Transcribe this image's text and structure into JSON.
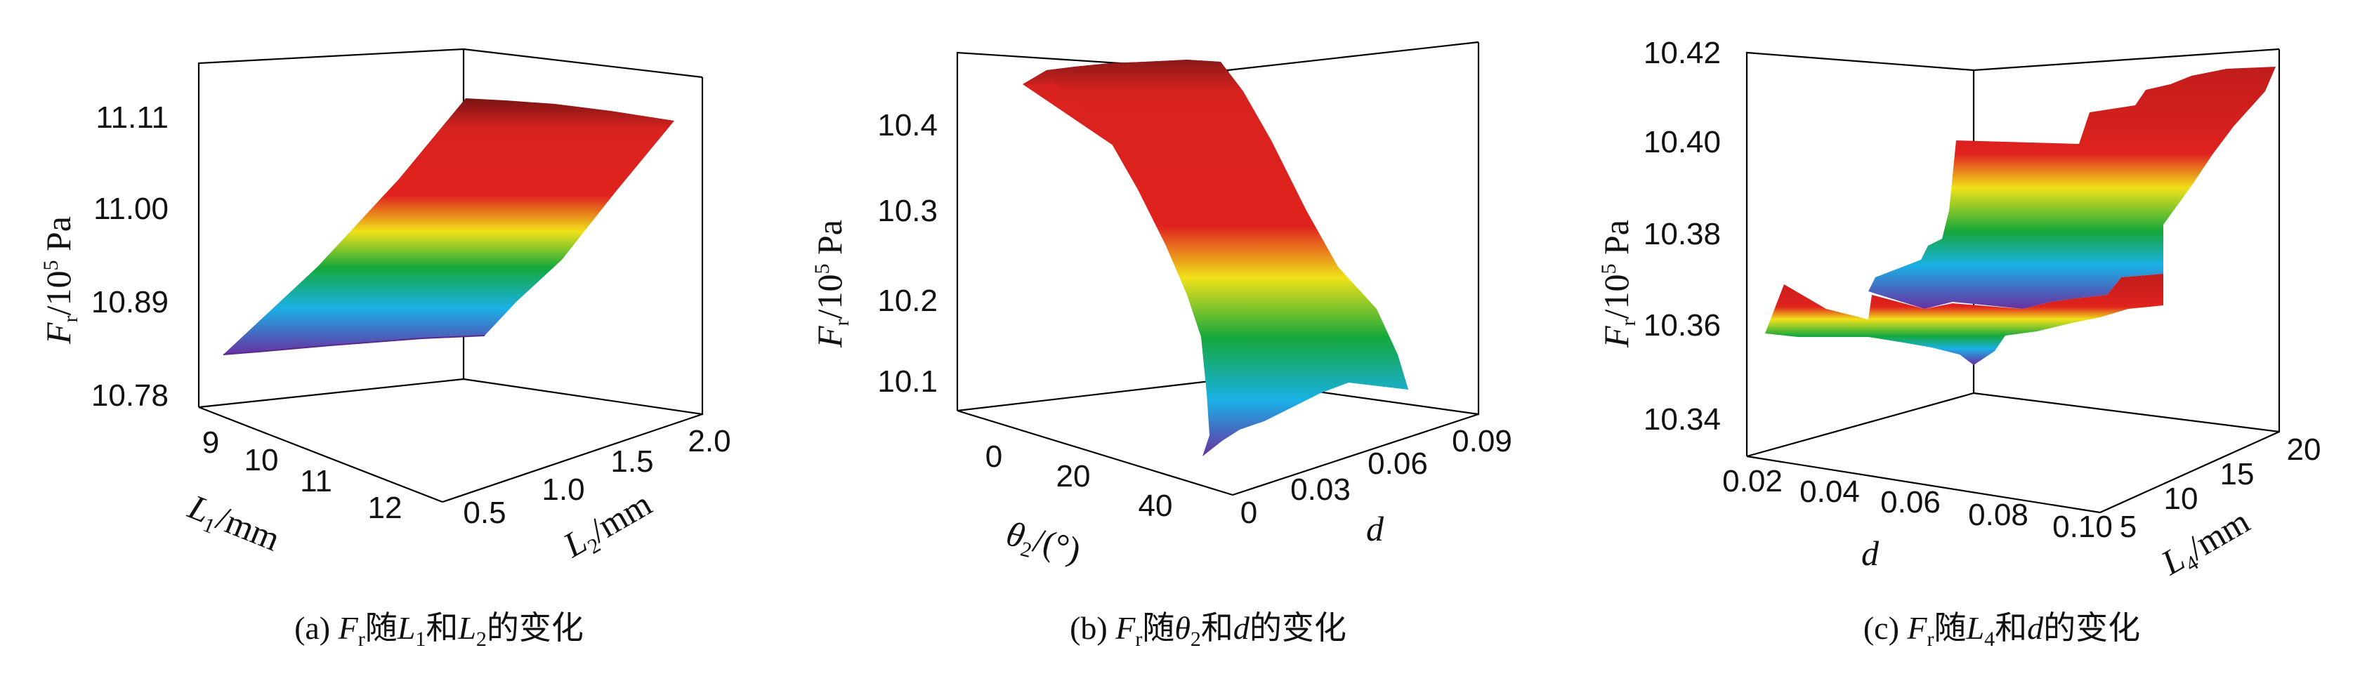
{
  "colors": {
    "high": "#7a1414",
    "peak": "#e0221e",
    "mid_hi": "#f0e21a",
    "mid": "#15a83b",
    "mid_lo": "#1ab0e6",
    "low": "#6a2fa0",
    "axis": "#000000"
  },
  "panels": [
    {
      "caption_prefix": "(a)",
      "caption_parts": [
        "F",
        "r",
        "随",
        "L",
        "1",
        "和",
        "L",
        "2",
        "的变化"
      ],
      "zlabel": "F",
      "zlabel_sub": "r",
      "zlabel_unit": "/10",
      "zlabel_sup": "5",
      "zlabel_tail": " Pa",
      "xlabel": "L",
      "xlabel_sub": "1",
      "xlabel_unit": "/mm",
      "ylabel": "L",
      "ylabel_sub": "2",
      "ylabel_unit": "/mm"
    },
    {
      "caption_prefix": "(b)",
      "caption_parts": [
        "F",
        "r",
        "随",
        "θ",
        "2",
        "和",
        "d",
        "的变化"
      ],
      "zlabel": "F",
      "zlabel_sub": "r",
      "zlabel_unit": "/10",
      "zlabel_sup": "5",
      "zlabel_tail": " Pa",
      "xlabel": "θ",
      "xlabel_sub": "2",
      "xlabel_unit": "/(°)",
      "ylabel": "d",
      "ylabel_sub": "",
      "ylabel_unit": ""
    },
    {
      "caption_prefix": "(c)",
      "caption_parts": [
        "F",
        "r",
        "随",
        "L",
        "4",
        "和",
        "d",
        "的变化"
      ],
      "zlabel": "F",
      "zlabel_sub": "r",
      "zlabel_unit": "/10",
      "zlabel_sup": "5",
      "zlabel_tail": " Pa",
      "xlabel": "d",
      "xlabel_sub": "",
      "xlabel_unit": "",
      "ylabel": "L",
      "ylabel_sub": "4",
      "ylabel_unit": "/mm"
    }
  ],
  "chart_data": [
    {
      "type": "surface",
      "title": "",
      "x": {
        "label": "L1/mm",
        "ticks": [
          "9",
          "10",
          "11",
          "12"
        ],
        "range": [
          8.5,
          12.5
        ]
      },
      "y": {
        "label": "L2/mm",
        "ticks": [
          "0.5",
          "1.0",
          "1.5",
          "2.0"
        ],
        "range": [
          0.3,
          2.1
        ]
      },
      "z": {
        "label": "Fr/10^5 Pa",
        "ticks": [
          "10.78",
          "10.89",
          "11.00",
          "11.11"
        ],
        "range": [
          10.75,
          11.17
        ]
      },
      "surface_points": [
        {
          "L1": 9,
          "L2": 0.5,
          "Fr": 10.84
        },
        {
          "L1": 12,
          "L2": 0.5,
          "Fr": 10.82
        },
        {
          "L1": 9,
          "L2": 2.0,
          "Fr": 11.12
        },
        {
          "L1": 12,
          "L2": 2.0,
          "Fr": 11.1
        }
      ]
    },
    {
      "type": "surface",
      "title": "",
      "x": {
        "label": "θ2/(°)",
        "ticks": [
          "0",
          "20",
          "40"
        ],
        "range": [
          -5,
          50
        ]
      },
      "y": {
        "label": "d",
        "ticks": [
          "0",
          "0.03",
          "0.06",
          "0.09"
        ],
        "range": [
          0,
          0.1
        ]
      },
      "z": {
        "label": "Fr/10^5 Pa",
        "ticks": [
          "10.1",
          "10.2",
          "10.3",
          "10.4"
        ],
        "range": [
          10.04,
          10.48
        ]
      },
      "surface_points": [
        {
          "theta2": 0,
          "d": 0.0,
          "Fr": 10.44
        },
        {
          "theta2": 20,
          "d": 0.0,
          "Fr": 10.46
        },
        {
          "theta2": 45,
          "d": 0.0,
          "Fr": 10.05
        },
        {
          "theta2": 45,
          "d": 0.09,
          "Fr": 10.07
        }
      ]
    },
    {
      "type": "surface",
      "title": "",
      "x": {
        "label": "d",
        "ticks": [
          "0.02",
          "0.04",
          "0.06",
          "0.08",
          "0.10"
        ],
        "range": [
          0.02,
          0.1
        ]
      },
      "y": {
        "label": "L4/mm",
        "ticks": [
          "5",
          "10",
          "15",
          "20"
        ],
        "range": [
          4,
          21
        ]
      },
      "z": {
        "label": "Fr/10^5 Pa",
        "ticks": [
          "10.34",
          "10.36",
          "10.38",
          "10.40",
          "10.42"
        ],
        "range": [
          10.335,
          10.42
        ]
      },
      "surface_points": [
        {
          "d": 0.02,
          "L4": 5,
          "Fr": 10.358
        },
        {
          "d": 0.06,
          "L4": 5,
          "Fr": 10.352
        },
        {
          "d": 0.1,
          "L4": 5,
          "Fr": 10.36
        },
        {
          "d": 0.1,
          "L4": 20,
          "Fr": 10.418
        }
      ]
    }
  ]
}
